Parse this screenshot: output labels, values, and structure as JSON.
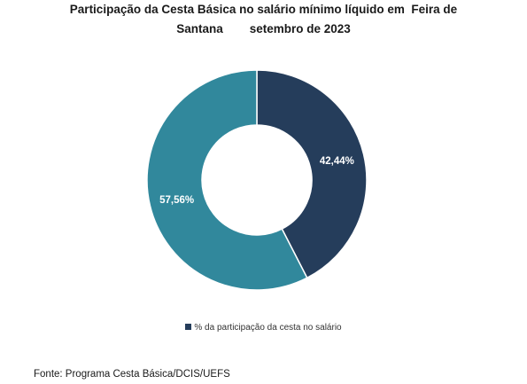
{
  "chart_data": {
    "type": "pie",
    "variant": "donut",
    "title_lines": [
      "Participação da Cesta Básica no salário mínimo líquido em  Feira de",
      "Santana        setembro de 2023"
    ],
    "slices": [
      {
        "label": "42,44%",
        "value": 42.44,
        "color": "#253d5b"
      },
      {
        "label": "57,56%",
        "value": 57.56,
        "color": "#31889c"
      }
    ],
    "legend": {
      "label": "% da participação da cesta no salário",
      "color": "#253d5b",
      "position": "bottom"
    }
  },
  "source": "Fonte: Programa Cesta Básica/DCIS/UEFS"
}
